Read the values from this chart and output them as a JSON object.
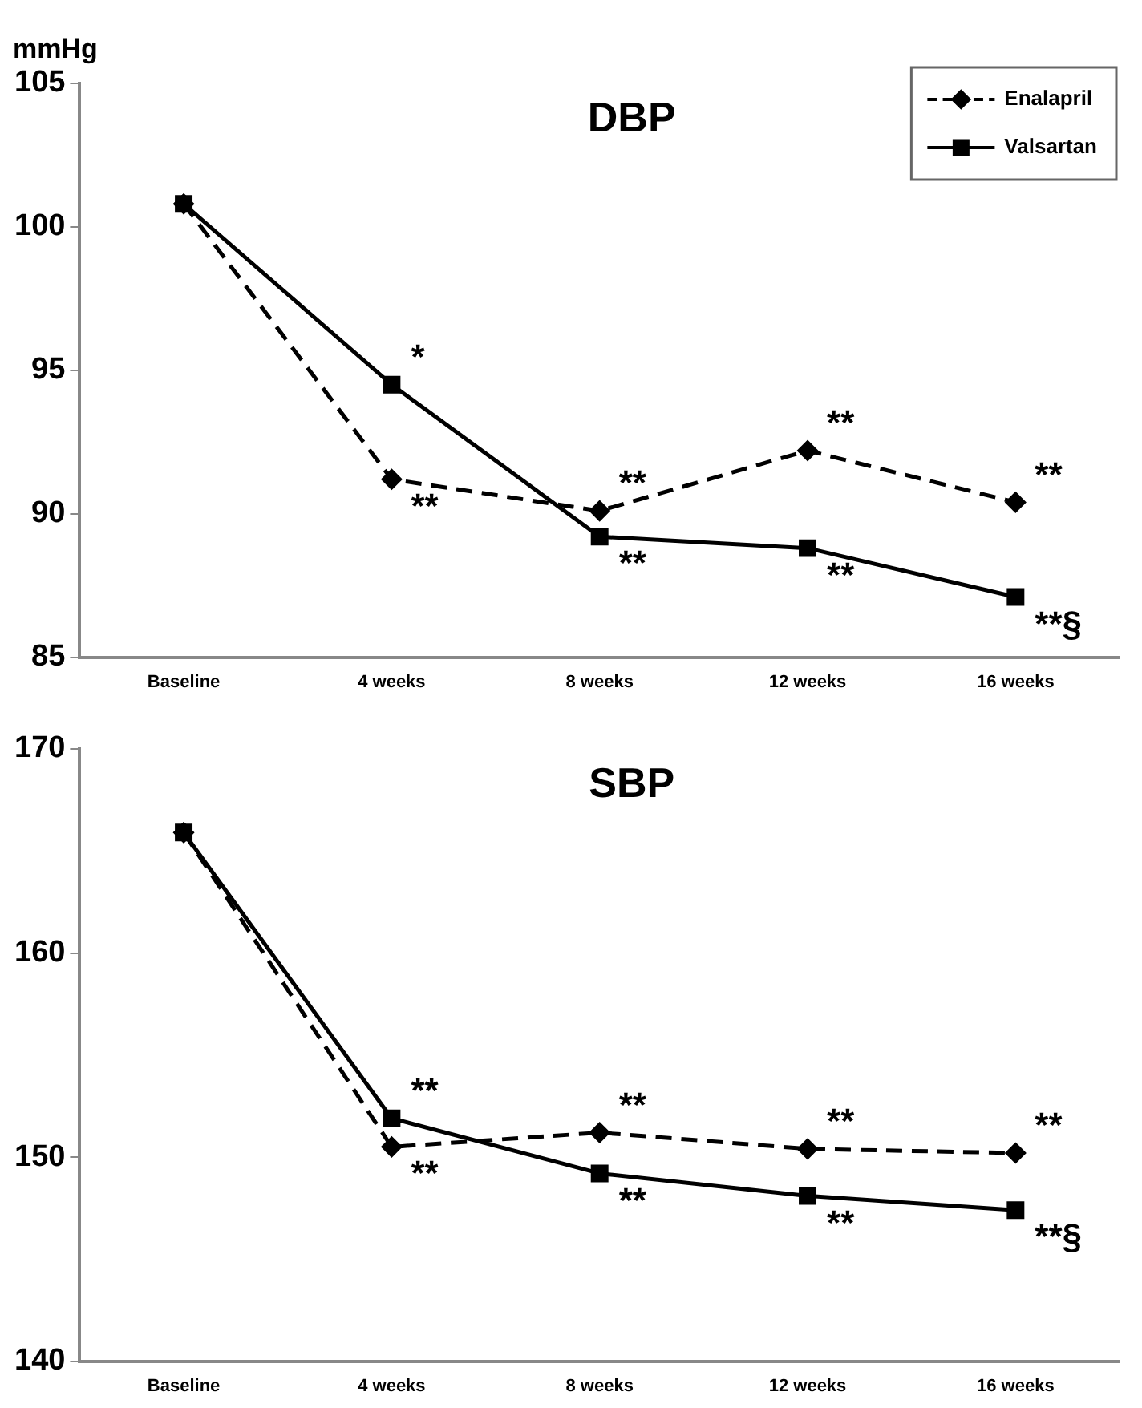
{
  "chart_data": [
    {
      "type": "line",
      "title": "DBP",
      "ylabel": "mmHg",
      "categories": [
        "Baseline",
        "4 weeks",
        "8 weeks",
        "12 weeks",
        "16 weeks"
      ],
      "series": [
        {
          "name": "Enalapril",
          "color": "#000000",
          "values": [
            100.8,
            91.2,
            90.1,
            92.2,
            90.4
          ],
          "line_style": "dashed",
          "marker": "diamond"
        },
        {
          "name": "Valsartan",
          "color": "#000000",
          "values": [
            100.8,
            94.5,
            89.2,
            88.8,
            87.1
          ],
          "line_style": "solid",
          "marker": "square"
        }
      ],
      "ylim": [
        85,
        105
      ],
      "yticks": [
        85,
        90,
        95,
        100,
        105
      ],
      "grid": false,
      "legend": "top right",
      "annotations": [
        {
          "text": "*",
          "x": "4 weeks",
          "y": 94.5
        },
        {
          "text": "**",
          "x": "4 weeks",
          "y": 91.2
        },
        {
          "text": "**",
          "x": "8 weeks",
          "y": 90.1
        },
        {
          "text": "**",
          "x": "8 weeks",
          "y": 89.2
        },
        {
          "text": "**",
          "x": "12 weeks",
          "y": 92.2
        },
        {
          "text": "**",
          "x": "12 weeks",
          "y": 88.8
        },
        {
          "text": "**",
          "x": "16 weeks",
          "y": 90.4
        },
        {
          "text": "**§",
          "x": "16 weeks",
          "y": 87.1
        }
      ]
    },
    {
      "type": "line",
      "title": "SBP",
      "categories": [
        "Baseline",
        "4 weeks",
        "8 weeks",
        "12 weeks",
        "16 weeks"
      ],
      "series": [
        {
          "color": "#000000",
          "values": [
            165.9,
            150.5,
            151.2,
            150.4,
            150.2
          ],
          "line_style": "dashed",
          "marker": "diamond"
        },
        {
          "color": "#000000",
          "values": [
            165.9,
            151.9,
            149.2,
            148.1,
            147.4
          ],
          "line_style": "solid",
          "marker": "square"
        }
      ],
      "ylim": [
        140,
        170
      ],
      "yticks": [
        140,
        150,
        160,
        170
      ],
      "grid": false,
      "legend": false,
      "annotations": [
        {
          "text": "**",
          "x": "4 weeks",
          "y": 151.9
        },
        {
          "text": "**",
          "x": "4 weeks",
          "y": 150.5
        },
        {
          "text": "**",
          "x": "8 weeks",
          "y": 151.2
        },
        {
          "text": "**",
          "x": "8 weeks",
          "y": 149.2
        },
        {
          "text": "**",
          "x": "12 weeks",
          "y": 150.4
        },
        {
          "text": "**",
          "x": "12 weeks",
          "y": 148.1
        },
        {
          "text": "**",
          "x": "16 weeks",
          "y": 150.2
        },
        {
          "text": "**§",
          "x": "16 weeks",
          "y": 147.4
        }
      ]
    }
  ]
}
